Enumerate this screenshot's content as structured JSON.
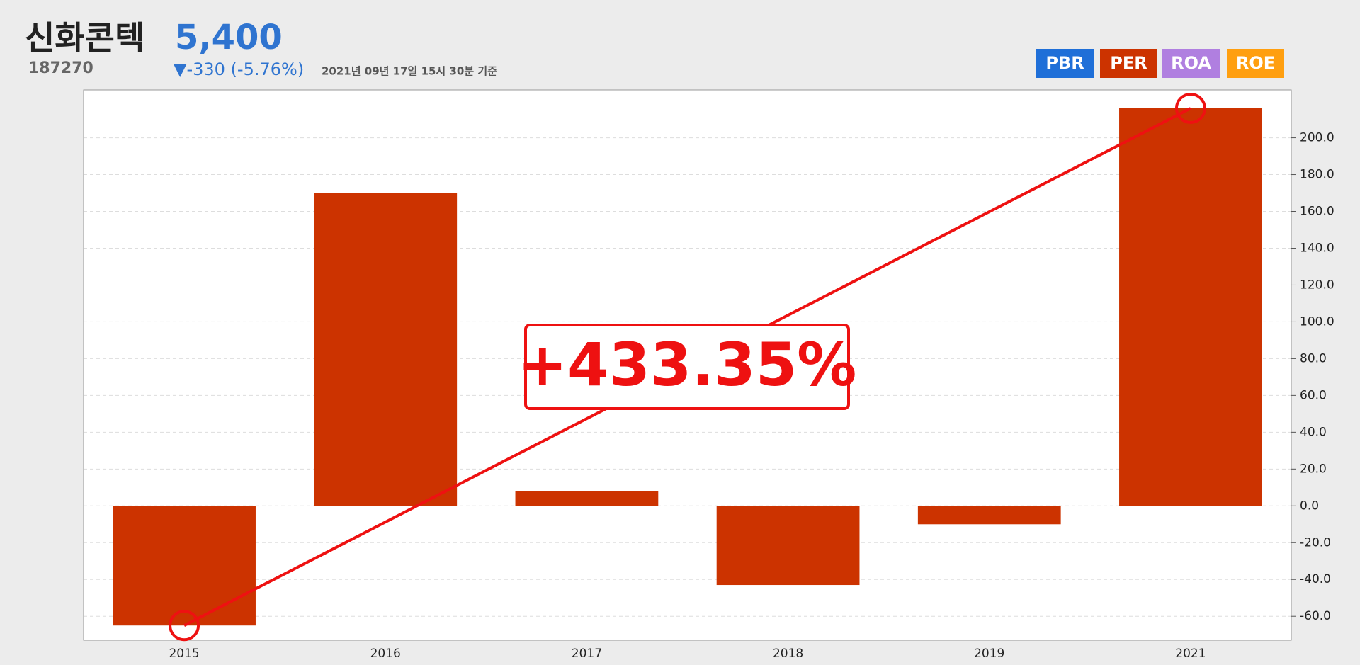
{
  "header": {
    "name": "신화콘텍",
    "code": "187270",
    "price": "5,400",
    "change": "▼-330 (-5.76%)",
    "timestamp": "2021년 09년 17일 15시 30분 기준",
    "tabs": [
      {
        "label": "PBR",
        "color": "#1f6fd8"
      },
      {
        "label": "PER",
        "color": "#cc3300"
      },
      {
        "label": "ROA",
        "color": "#b07fe0"
      },
      {
        "label": "ROE",
        "color": "#ff9f10"
      }
    ]
  },
  "chart_data": {
    "type": "bar",
    "categories": [
      "2015",
      "2016",
      "2017",
      "2018",
      "2019",
      "2021"
    ],
    "series": [
      {
        "name": "PER",
        "color": "#cc3300",
        "values": [
          -65,
          170,
          8,
          -43,
          -10,
          216
        ]
      }
    ],
    "ylim": [
      -73,
      226
    ],
    "yticks": [
      {
        "value": -60,
        "label": "-60.0"
      },
      {
        "value": -40,
        "label": "-40.0"
      },
      {
        "value": -20,
        "label": "-20.0"
      },
      {
        "value": 0,
        "label": "0.0"
      },
      {
        "value": 20,
        "label": "20.0"
      },
      {
        "value": 40,
        "label": "40.0"
      },
      {
        "value": 60,
        "label": "60.0"
      },
      {
        "value": 80,
        "label": "80.0"
      },
      {
        "value": 100,
        "label": "100.0"
      },
      {
        "value": 120,
        "label": "120.0"
      },
      {
        "value": 140,
        "label": "140.0"
      },
      {
        "value": 160,
        "label": "160.0"
      },
      {
        "value": 180,
        "label": "180.0"
      },
      {
        "value": 200,
        "label": "200.0"
      }
    ],
    "grid": true,
    "annotation": "+433.35%",
    "annotation_color": "#ee1111"
  }
}
